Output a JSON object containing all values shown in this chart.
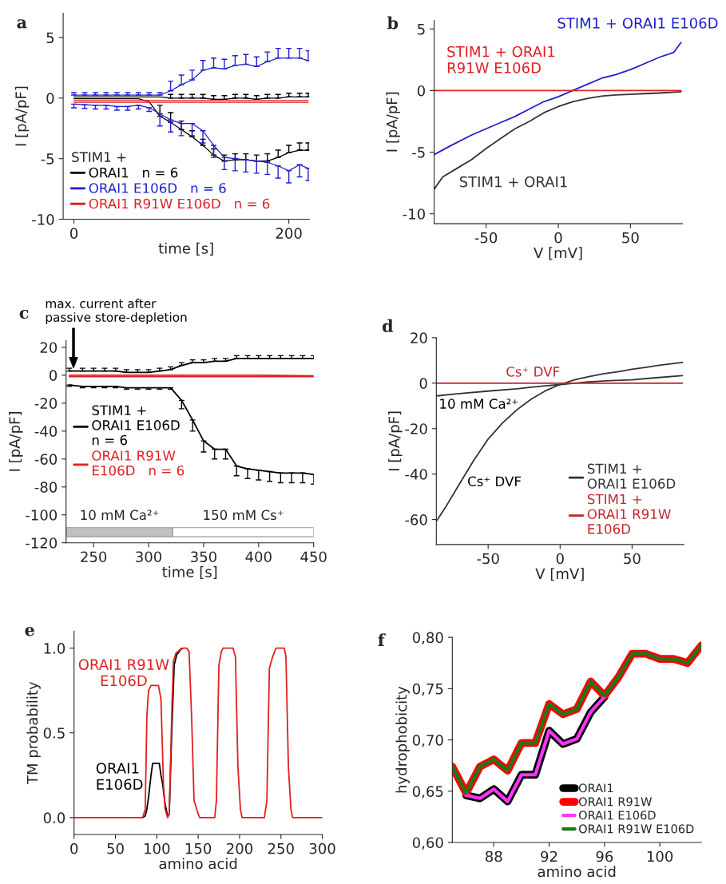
{
  "chart_data": [
    {
      "type": "line",
      "title": "a",
      "xlabel": "time [s]",
      "ylabel": "I [pA/pF]",
      "xlim": [
        -10,
        219
      ],
      "ylim": [
        -10,
        7
      ],
      "xticks": [
        0,
        200
      ],
      "yticks": [
        -10,
        -5,
        0,
        5
      ],
      "legend": "bottom left",
      "legend_title": "STIM1 +",
      "x": [
        0,
        10,
        20,
        30,
        40,
        50,
        60,
        70,
        80,
        90,
        100,
        110,
        120,
        130,
        140,
        150,
        160,
        170,
        180,
        190,
        200,
        210,
        218
      ],
      "series": [
        {
          "name": "ORAI1   n = 6",
          "color": "#000000",
          "values": [
            -0.05,
            -0.05,
            -0.05,
            -0.05,
            -0.05,
            -0.05,
            -0.05,
            -0.3,
            -1.5,
            -2.0,
            -2.6,
            -3.2,
            -3.9,
            -4.7,
            -5.2,
            -5.1,
            -5.1,
            -5.2,
            -5.2,
            -4.9,
            -4.5,
            -4.3,
            -4.3
          ],
          "errors": [
            null,
            null,
            null,
            null,
            null,
            null,
            null,
            null,
            [
              -1.5,
              -0.6
            ],
            [
              -2.0,
              -1.2
            ],
            [
              -2.6,
              -1.9
            ],
            [
              -3.2,
              -2.7
            ],
            [
              -3.9,
              -3.4
            ],
            [
              -4.7,
              -4.2
            ],
            [
              -5.2,
              -4.7
            ],
            [
              -5.1,
              -4.6
            ],
            [
              -5.1,
              -4.6
            ],
            [
              -5.2,
              -4.7
            ],
            [
              -5.2,
              -4.6
            ],
            [
              -4.9,
              -4.3
            ],
            [
              -4.5,
              -3.9
            ],
            [
              -4.3,
              -3.7
            ],
            [
              -4.3,
              -3.7
            ]
          ]
        },
        {
          "color": "#000000",
          "values": [
            0.1,
            0.1,
            0.1,
            0.1,
            0.1,
            0.1,
            0.1,
            0.1,
            0.1,
            0,
            0,
            0,
            0,
            -0.1,
            -0.1,
            0,
            0,
            -0.1,
            0,
            0,
            0.1,
            0.1,
            0.1
          ],
          "errors": [
            null,
            null,
            null,
            null,
            null,
            null,
            null,
            null,
            null,
            [
              0,
              0.3
            ],
            [
              0,
              0.3
            ],
            [
              0,
              0.3
            ],
            [
              0,
              0.3
            ],
            [
              -0.1,
              0.2
            ],
            [
              -0.1,
              0.2
            ],
            [
              0,
              0.3
            ],
            [
              0,
              0.3
            ],
            [
              -0.1,
              0.2
            ],
            [
              0,
              0.3
            ],
            [
              0,
              0.3
            ],
            [
              0.1,
              0.4
            ],
            [
              0.1,
              0.4
            ],
            [
              0.1,
              0.4
            ]
          ]
        },
        {
          "name": "ORAI1 E106D   n = 6",
          "color": "#1f1fd0",
          "values": [
            -0.5,
            -0.55,
            -0.6,
            -0.6,
            -0.7,
            -0.7,
            -0.6,
            -0.8,
            -1.3,
            -1.8,
            -2.1,
            -2.1,
            -2.7,
            -3.9,
            -4.9,
            -5.0,
            -5.1,
            -5.2,
            -5.3,
            -5.6,
            -6.0,
            -5.5,
            -5.8
          ],
          "errors": [
            [
              -0.8,
              -0.5
            ],
            [
              -0.85,
              -0.55
            ],
            [
              -0.9,
              -0.6
            ],
            [
              -0.9,
              -0.6
            ],
            [
              -1.0,
              -0.7
            ],
            [
              -1.0,
              -0.7
            ],
            [
              -0.9,
              -0.6
            ],
            [
              -1.1,
              -0.8
            ],
            [
              -2.3,
              -1.3
            ],
            [
              -2.8,
              -1.8
            ],
            [
              -3.1,
              -2.1
            ],
            [
              -3.1,
              -2.1
            ],
            [
              -3.7,
              -2.7
            ],
            [
              -4.9,
              -3.9
            ],
            [
              -5.9,
              -4.9
            ],
            [
              -6.0,
              -5.0
            ],
            [
              -6.1,
              -5.1
            ],
            [
              -6.2,
              -5.2
            ],
            [
              -6.3,
              -5.3
            ],
            [
              -6.6,
              -5.6
            ],
            [
              -7.0,
              -6.0
            ],
            [
              -6.5,
              -5.5
            ],
            [
              -6.8,
              -5.8
            ]
          ]
        },
        {
          "color": "#1f1fd0",
          "values": [
            0.25,
            0.25,
            0.25,
            0.25,
            0.25,
            0.25,
            0.25,
            0.25,
            0.25,
            0.6,
            1.1,
            1.5,
            2.3,
            2.5,
            2.4,
            2.7,
            2.8,
            2.6,
            3.0,
            3.3,
            3.3,
            3.3,
            3.1
          ],
          "errors": [
            [
              0.25,
              0.45
            ],
            [
              0.25,
              0.45
            ],
            [
              0.25,
              0.45
            ],
            [
              0.25,
              0.45
            ],
            [
              0.25,
              0.45
            ],
            [
              0.25,
              0.45
            ],
            [
              0.25,
              0.45
            ],
            [
              0.25,
              0.45
            ],
            [
              0.25,
              0.45
            ],
            [
              0.6,
              1.4
            ],
            [
              1.1,
              1.9
            ],
            [
              1.5,
              2.3
            ],
            [
              2.3,
              3.1
            ],
            [
              2.5,
              3.3
            ],
            [
              2.4,
              3.2
            ],
            [
              2.7,
              3.5
            ],
            [
              2.8,
              3.6
            ],
            [
              2.6,
              3.4
            ],
            [
              3.0,
              3.8
            ],
            [
              3.3,
              4.1
            ],
            [
              3.3,
              4.1
            ],
            [
              3.3,
              4.1
            ],
            [
              3.1,
              3.9
            ]
          ]
        },
        {
          "name": "ORAI1 R91W E106D   n = 6",
          "color": "#e02020",
          "values": [
            -0.2,
            -0.2,
            -0.2,
            -0.2,
            -0.2,
            -0.2,
            -0.2,
            -0.2,
            -0.2,
            -0.2,
            -0.2,
            -0.2,
            -0.2,
            -0.2,
            -0.2,
            -0.2,
            -0.2,
            -0.2,
            -0.2,
            -0.2,
            -0.2,
            -0.2,
            -0.2
          ]
        },
        {
          "color": "#e02020",
          "values": [
            -0.35,
            -0.35,
            -0.35,
            -0.35,
            -0.35,
            -0.35,
            -0.35,
            -0.35,
            -0.35,
            -0.35,
            -0.35,
            -0.35,
            -0.35,
            -0.35,
            -0.35,
            -0.35,
            -0.35,
            -0.35,
            -0.35,
            -0.35,
            -0.35,
            -0.35,
            -0.35
          ]
        }
      ]
    },
    {
      "type": "line",
      "title": "b",
      "xlabel": "V [mV]",
      "ylabel": "I [pA/pF]",
      "xlim": [
        -86,
        86
      ],
      "ylim": [
        -10.8,
        5.7
      ],
      "xticks": [
        -50,
        0,
        50
      ],
      "yticks": [
        -10,
        -5,
        0,
        5
      ],
      "series": [
        {
          "name": "STIM1 + ORAI1",
          "color": "#333333",
          "x": [
            -86,
            -80,
            -70,
            -60,
            -50,
            -40,
            -30,
            -20,
            -10,
            0,
            10,
            20,
            30,
            40,
            50,
            60,
            70,
            85
          ],
          "values": [
            -8.0,
            -7.0,
            -6.3,
            -5.6,
            -4.7,
            -3.9,
            -3.1,
            -2.5,
            -1.8,
            -1.3,
            -0.9,
            -0.65,
            -0.45,
            -0.35,
            -0.3,
            -0.25,
            -0.2,
            -0.1
          ]
        },
        {
          "name": "STIM1 + ORAI1 E106D",
          "color": "#2020d0",
          "x": [
            -86,
            -75,
            -60,
            -50,
            -40,
            -30,
            -20,
            -10,
            0,
            10,
            20,
            30,
            40,
            50,
            60,
            70,
            80,
            85
          ],
          "values": [
            -5.2,
            -4.5,
            -3.6,
            -3.1,
            -2.6,
            -2.1,
            -1.5,
            -0.9,
            -0.5,
            0.0,
            0.5,
            1.0,
            1.3,
            1.7,
            2.2,
            2.7,
            3.1,
            3.9
          ]
        },
        {
          "name": "STIM1 + ORAI1\nR91W E106D",
          "color": "#e02020",
          "x": [
            -86,
            85
          ],
          "values": [
            0,
            0
          ]
        }
      ]
    },
    {
      "type": "line",
      "title": "c",
      "xlabel": "time [s]",
      "ylabel": "I [pA/pF]",
      "xlim": [
        225,
        450
      ],
      "ylim": [
        -120,
        25
      ],
      "xticks": [
        250,
        300,
        350,
        400,
        450
      ],
      "yticks": [
        20,
        0,
        -20,
        -40,
        -60,
        -80,
        -100,
        -120
      ],
      "legend": "left",
      "annotations": [
        "max. current after\npassive store-depletion"
      ],
      "bands": [
        {
          "axis": "x",
          "from": 225,
          "to": 322,
          "label": "10 mM Ca²⁺",
          "color": "#c0c0c0"
        },
        {
          "axis": "x",
          "from": 322,
          "to": 450,
          "label": "150 mM Cs⁺",
          "color": "#ffffff"
        }
      ],
      "series": [
        {
          "name": "STIM1 +\nORAI1 E106D\nn = 6",
          "color": "#000000",
          "x": [
            228,
            240,
            250,
            260,
            270,
            280,
            290,
            300,
            310,
            320,
            330,
            340,
            350,
            360,
            370,
            380,
            390,
            400,
            410,
            420,
            430,
            440,
            450
          ],
          "values": [
            -7,
            -8,
            -8,
            -8,
            -8,
            -9,
            -9,
            -9,
            -9,
            -9,
            -18,
            -32,
            -47,
            -53,
            -53,
            -65,
            -67,
            -68,
            -69,
            -70,
            -70,
            -70,
            -71
          ],
          "errors": [
            [
              -8,
              -7
            ],
            [
              -9,
              -8
            ],
            [
              -9,
              -8
            ],
            [
              -9,
              -8
            ],
            [
              -9,
              -8
            ],
            [
              -10,
              -9
            ],
            [
              -10,
              -9
            ],
            [
              -10,
              -9
            ],
            [
              -10,
              -9
            ],
            [
              -10,
              -9
            ],
            [
              -24,
              -18
            ],
            [
              -40,
              -32
            ],
            [
              -55,
              -47
            ],
            [
              -60,
              -53
            ],
            [
              -60,
              -53
            ],
            [
              -72,
              -65
            ],
            [
              -74,
              -67
            ],
            [
              -75,
              -68
            ],
            [
              -76,
              -69
            ],
            [
              -77,
              -70
            ],
            [
              -77,
              -70
            ],
            [
              -77,
              -70
            ],
            [
              -78,
              -71
            ]
          ]
        },
        {
          "color": "#000000",
          "x": [
            228,
            240,
            250,
            260,
            270,
            280,
            290,
            300,
            310,
            320,
            330,
            340,
            350,
            360,
            370,
            380,
            390,
            400,
            410,
            420,
            430,
            440,
            450
          ],
          "values": [
            3,
            3,
            3,
            3,
            3,
            2,
            2,
            2,
            3,
            4,
            7,
            9,
            9,
            10,
            10,
            12,
            12,
            12,
            12,
            12,
            12,
            12,
            12
          ],
          "errors": [
            [
              3,
              5
            ],
            [
              3,
              5
            ],
            [
              3,
              5
            ],
            [
              3,
              5
            ],
            [
              3,
              5
            ],
            [
              2,
              4
            ],
            [
              2,
              4
            ],
            [
              2,
              4
            ],
            [
              3,
              5
            ],
            [
              4,
              6
            ],
            [
              7,
              9
            ],
            [
              9,
              11
            ],
            [
              9,
              11
            ],
            [
              10,
              12
            ],
            [
              10,
              12
            ],
            [
              12,
              14
            ],
            [
              12,
              14
            ],
            [
              12,
              14
            ],
            [
              12,
              14
            ],
            [
              12,
              14
            ],
            [
              12,
              14
            ],
            [
              12,
              14
            ],
            [
              12,
              14
            ]
          ]
        },
        {
          "name": "ORAI1 R91W\nE106D   n = 6",
          "color": "#e02020",
          "x": [
            228,
            300,
            350,
            400,
            450
          ],
          "values": [
            0,
            0,
            0,
            0,
            -0.5
          ]
        },
        {
          "color": "#e02020",
          "x": [
            228,
            300,
            350,
            400,
            450
          ],
          "values": [
            -1,
            -1,
            -1,
            -1,
            -1
          ]
        }
      ]
    },
    {
      "type": "line",
      "title": "d",
      "xlabel": "V [mV]",
      "ylabel": "I [pA/pF]",
      "xlim": [
        -86,
        86
      ],
      "ylim": [
        -71,
        20
      ],
      "xticks": [
        -50,
        0,
        50
      ],
      "yticks": [
        20,
        0,
        -20,
        -40,
        -60
      ],
      "legend": "bottom right",
      "annotations": [
        "Cs⁺ DVF",
        "10 mM Ca²⁺",
        "Cs⁺ DVF"
      ],
      "series": [
        {
          "name": "STIM1 +\nORAI1 E106D",
          "color": "#333333",
          "x": [
            -86,
            -80,
            -70,
            -60,
            -50,
            -40,
            -30,
            -20,
            -10,
            0,
            10,
            20,
            30,
            40,
            50,
            60,
            70,
            85
          ],
          "values": [
            -60.8,
            -55,
            -44.4,
            -34,
            -24.6,
            -17.5,
            -11.7,
            -7,
            -3.3,
            -0.6,
            1.5,
            2.9,
            4.1,
            5,
            6.1,
            7,
            8,
            9.1
          ]
        },
        {
          "color": "#333333",
          "x": [
            -86,
            -70,
            -50,
            -30,
            -20,
            -10,
            0,
            10,
            20,
            35,
            50,
            65,
            85
          ],
          "values": [
            -5.6,
            -4.6,
            -3.5,
            -2.5,
            -1.8,
            -1.2,
            -0.6,
            0,
            0.6,
            1.1,
            1.5,
            2.3,
            3.3
          ]
        },
        {
          "name": "STIM1 +\nORAI1 R91W\nE106D",
          "color": "#c0262b",
          "x": [
            -86,
            85
          ],
          "values": [
            0,
            0
          ]
        }
      ]
    },
    {
      "type": "line",
      "title": "e",
      "xlabel": "amino acid",
      "ylabel": "TM probability",
      "xlim": [
        0,
        300
      ],
      "ylim": [
        -0.1,
        1.1
      ],
      "xticks": [
        0,
        50,
        100,
        150,
        200,
        250,
        300
      ],
      "yticks": [
        {
          "value": 0,
          "label": "0.0"
        },
        {
          "value": 0.5,
          "label": "0.5"
        },
        {
          "value": 1,
          "label": "1.0"
        }
      ],
      "series": [
        {
          "name": "ORAI1\nE106D",
          "color": "#000000",
          "x": [
            83,
            86,
            88,
            90,
            93,
            95,
            100,
            103,
            105,
            107,
            110,
            113,
            115,
            118,
            121,
            124,
            127,
            130
          ],
          "values": [
            0,
            0.01,
            0.05,
            0.12,
            0.25,
            0.32,
            0.32,
            0.32,
            0.25,
            0.2,
            0.08,
            0.01,
            0.02,
            0.5,
            0.9,
            0.96,
            0.98,
            1.0
          ]
        },
        {
          "name": "ORAI1 R91W\nE106D",
          "color": "#e02020",
          "x": [
            0,
            83,
            86,
            88,
            90,
            93,
            102,
            105,
            108,
            110,
            113,
            115,
            118,
            120,
            123,
            128,
            132,
            136,
            139,
            142,
            145,
            150,
            152,
            170,
            172,
            175,
            178,
            180,
            192,
            195,
            198,
            201,
            203,
            230,
            233,
            236,
            240,
            244,
            254,
            256,
            259,
            262,
            264,
            300
          ],
          "values": [
            0,
            0,
            0.05,
            0.6,
            0.75,
            0.78,
            0.78,
            0.7,
            0.2,
            0.05,
            0,
            0.02,
            0.6,
            0.92,
            0.97,
            0.99,
            1.0,
            1.0,
            0.98,
            0.6,
            0.1,
            0.02,
            0,
            0,
            0.1,
            0.9,
            0.98,
            1.0,
            1.0,
            0.95,
            0.3,
            0.05,
            0,
            0,
            0.1,
            0.88,
            0.95,
            1.0,
            1.0,
            0.95,
            0.3,
            0.05,
            0,
            0
          ]
        }
      ]
    },
    {
      "type": "line",
      "title": "f",
      "xlabel": "amino acid",
      "ylabel": "hydrophobicity",
      "xlim": [
        85,
        103
      ],
      "ylim": [
        0.6,
        0.8
      ],
      "xticks": [
        88,
        92,
        96,
        100
      ],
      "yticks": [
        {
          "value": 0.6,
          "label": "0,60"
        },
        {
          "value": 0.65,
          "label": "0,65"
        },
        {
          "value": 0.7,
          "label": "0,70"
        },
        {
          "value": 0.75,
          "label": "0,75"
        },
        {
          "value": 0.8,
          "label": "0,80"
        }
      ],
      "legend": "bottom right",
      "series": [
        {
          "name": "ORAI1",
          "color": "#000000",
          "x": [
            86,
            87,
            88,
            89,
            90,
            91,
            92,
            93,
            94,
            95,
            96
          ],
          "values": [
            0.646,
            0.643,
            0.652,
            0.64,
            0.666,
            0.666,
            0.709,
            0.696,
            0.701,
            0.727,
            0.742
          ]
        },
        {
          "name": "ORAI1 R91W",
          "color": "#ff0000",
          "x": [
            85,
            86,
            87,
            88,
            89,
            90,
            91,
            92,
            93,
            94,
            95,
            96,
            97,
            98,
            99,
            100,
            101,
            102,
            103
          ],
          "values": [
            0.674,
            0.648,
            0.674,
            0.681,
            0.67,
            0.697,
            0.697,
            0.735,
            0.725,
            0.73,
            0.757,
            0.743,
            0.761,
            0.784,
            0.784,
            0.779,
            0.779,
            0.775,
            0.792
          ]
        },
        {
          "name": "ORAI1 E106D",
          "color": "#ff33ff",
          "x": [
            86,
            87,
            88,
            89,
            90,
            91,
            92,
            93,
            94,
            95,
            96
          ],
          "values": [
            0.646,
            0.643,
            0.652,
            0.64,
            0.666,
            0.666,
            0.709,
            0.696,
            0.701,
            0.727,
            0.742
          ]
        },
        {
          "name": "ORAI1 R91W E106D",
          "color": "#1a7a1a",
          "x": [
            85,
            86,
            87,
            88,
            89,
            90,
            91,
            92,
            93,
            94,
            95,
            96,
            97,
            98,
            99,
            100,
            101,
            102,
            103
          ],
          "values": [
            0.674,
            0.648,
            0.674,
            0.681,
            0.67,
            0.697,
            0.697,
            0.735,
            0.725,
            0.73,
            0.757,
            0.743,
            0.761,
            0.784,
            0.784,
            0.779,
            0.779,
            0.775,
            0.792
          ]
        }
      ]
    }
  ]
}
